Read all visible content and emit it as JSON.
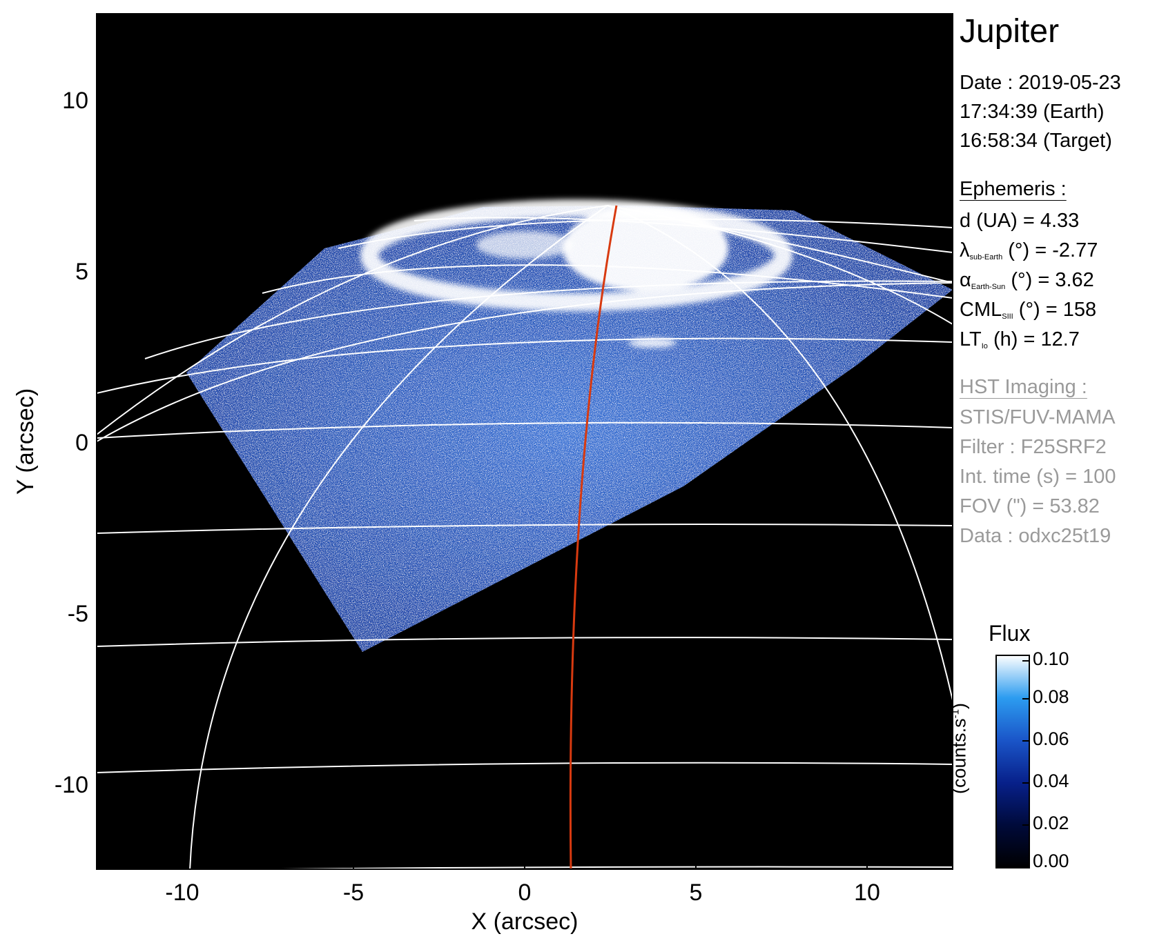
{
  "chart_data": {
    "type": "heatmap",
    "xlabel": "X (arcsec)",
    "ylabel": "Y (arcsec)",
    "xlim": [
      -12.5,
      12.5
    ],
    "ylim": [
      -12.5,
      12.5
    ],
    "x_ticks": [
      "-10",
      "-5",
      "0",
      "5",
      "10"
    ],
    "y_ticks": [
      "10",
      "5",
      "0",
      "-5",
      "-10"
    ],
    "colorbar": {
      "title": "Flux",
      "unit": "(counts.s",
      "unit_exp": "-1",
      "unit_close": ")",
      "ticks": [
        "0.10",
        "0.08",
        "0.06",
        "0.04",
        "0.02",
        "0.00"
      ],
      "range": [
        0.0,
        0.1
      ]
    }
  },
  "info": {
    "target": "Jupiter",
    "date_line": "Date : 2019-05-23",
    "time_earth": "17:34:39 (Earth)",
    "time_target": "16:58:34 (Target)",
    "ephemeris_header": "Ephemeris :",
    "eph_d": "d (UA)    = 4.33",
    "eph_lambda_sym": "λ",
    "eph_lambda_sub": "sub-Earth",
    "eph_lambda_val": " (°) = -2.77",
    "eph_alpha_sym": "α",
    "eph_alpha_sub": "Earth-Sun",
    "eph_alpha_val": " (°) = 3.62",
    "eph_cml_sym": "CML",
    "eph_cml_sub": "SIII",
    "eph_cml_val": " (°) = 158",
    "eph_lt_sym": "LT",
    "eph_lt_sub": "Io",
    "eph_lt_val": " (h) = 12.7",
    "hst_header": "HST Imaging :",
    "hst_instrument": "STIS/FUV-MAMA",
    "hst_filter": "Filter : F25SRF2",
    "hst_inttime": "Int. time (s) = 100",
    "hst_fov": "FOV (\") = 53.82",
    "hst_data": "Data : odxc25t19"
  },
  "colors": {
    "background": "#000000",
    "grid": "#ffffff",
    "meridian": "#d83a10",
    "info_gray": "#9a9a9a"
  }
}
